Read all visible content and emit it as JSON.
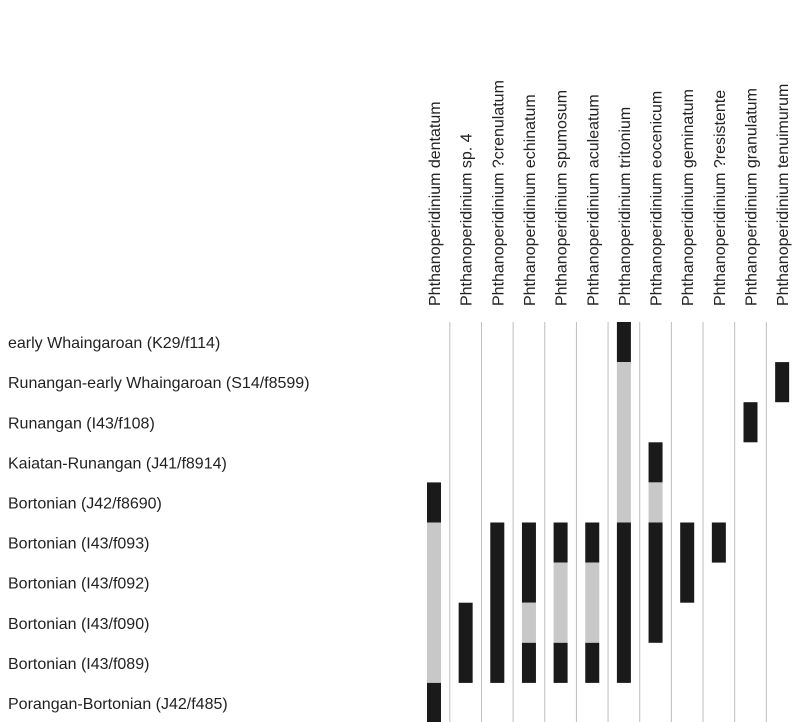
{
  "chart_data": {
    "type": "range-chart",
    "title": "",
    "xlabel": "",
    "ylabel": "",
    "colors": {
      "present": "#1a1a1a",
      "inferred": "#c8c8c8",
      "gridline": "#bdbdbd"
    },
    "samples": [
      "early Whaingaroan (K29/f114)",
      "Runangan-early Whaingaroan (S14/f8599)",
      "Runangan (I43/f108)",
      "Kaiatan-Runangan (J41/f8914)",
      "Bortonian (J42/f8690)",
      "Bortonian (I43/f093)",
      "Bortonian (I43/f092)",
      "Bortonian (I43/f090)",
      "Bortonian (I43/f089)",
      "Porangan-Bortonian (J42/f485)"
    ],
    "taxa": [
      {
        "name": "Phthanoperidinium dentatum",
        "ranges": [
          [
            4,
            4,
            "present"
          ],
          [
            5,
            8,
            "inferred"
          ],
          [
            9,
            9,
            "present"
          ]
        ]
      },
      {
        "name": "Phthanoperidinium sp. 4",
        "ranges": [
          [
            7,
            8,
            "present"
          ]
        ]
      },
      {
        "name": "Phthanoperidinium ?crenulatum",
        "ranges": [
          [
            5,
            8,
            "present"
          ]
        ]
      },
      {
        "name": "Phthanoperidinium echinatum",
        "ranges": [
          [
            5,
            6,
            "present"
          ],
          [
            7,
            7,
            "inferred"
          ],
          [
            8,
            8,
            "present"
          ]
        ]
      },
      {
        "name": "Phthanoperidinium spumosum",
        "ranges": [
          [
            5,
            5,
            "present"
          ],
          [
            6,
            7,
            "inferred"
          ],
          [
            8,
            8,
            "present"
          ]
        ]
      },
      {
        "name": "Phthanoperidinium aculeatum",
        "ranges": [
          [
            5,
            5,
            "present"
          ],
          [
            6,
            7,
            "inferred"
          ],
          [
            8,
            8,
            "present"
          ]
        ]
      },
      {
        "name": "Phthanoperidinium tritonium",
        "ranges": [
          [
            0,
            0,
            "present"
          ],
          [
            1,
            4,
            "inferred"
          ],
          [
            5,
            8,
            "present"
          ]
        ]
      },
      {
        "name": "Phthanoperidinium eocenicum",
        "ranges": [
          [
            3,
            3,
            "present"
          ],
          [
            4,
            4,
            "inferred"
          ],
          [
            5,
            7,
            "present"
          ]
        ]
      },
      {
        "name": "Phthanoperidinium geminatum",
        "ranges": [
          [
            5,
            6,
            "present"
          ]
        ]
      },
      {
        "name": "Phthanoperidinium ?resistente",
        "ranges": [
          [
            5,
            5,
            "present"
          ]
        ]
      },
      {
        "name": "Phthanoperidinium granulatum",
        "ranges": [
          [
            2,
            2,
            "present"
          ]
        ]
      },
      {
        "name": "Phthanoperidinium tenuimurum",
        "ranges": [
          [
            1,
            1,
            "present"
          ]
        ]
      }
    ]
  }
}
